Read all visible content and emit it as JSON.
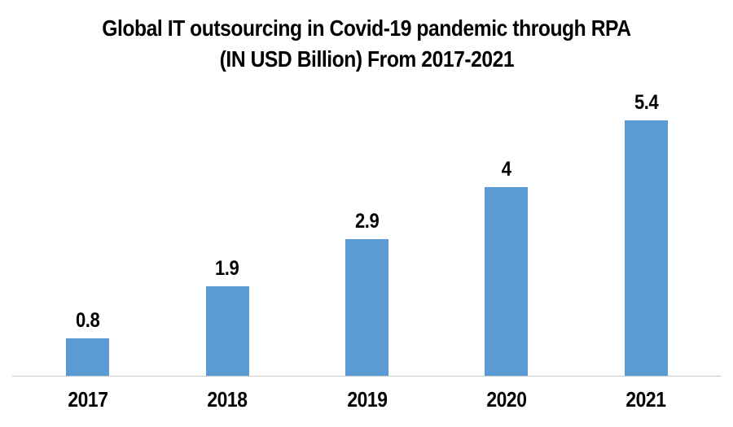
{
  "chart_data": {
    "type": "bar",
    "title_line1": "Global IT outsourcing in Covid-19 pandemic through RPA",
    "title_line2": "(IN USD Billion) From 2017-2021",
    "categories": [
      "2017",
      "2018",
      "2019",
      "2020",
      "2021"
    ],
    "values": [
      0.8,
      1.9,
      2.9,
      4,
      5.4
    ],
    "value_labels": [
      "0.8",
      "1.9",
      "2.9",
      "4",
      "5.4"
    ],
    "xlabel": "",
    "ylabel": "",
    "ylim": [
      0,
      6
    ],
    "grid": false,
    "legend": false,
    "bar_color": "#5B9BD5",
    "axis_line_color": "#BFBFBF",
    "text_color": "#000000",
    "background_color": "#FFFFFF"
  }
}
